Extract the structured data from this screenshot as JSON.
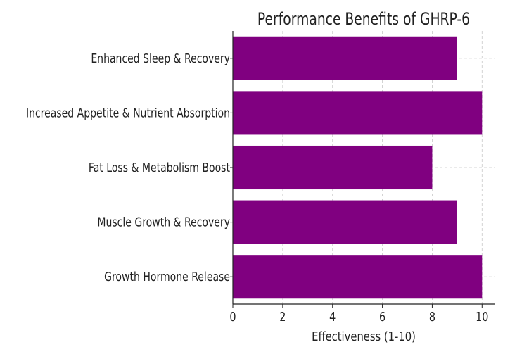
{
  "chart_data": {
    "type": "bar",
    "orientation": "horizontal",
    "title": "Performance Benefits of GHRP-6",
    "xlabel": "Effectiveness (1-10)",
    "ylabel": "",
    "categories": [
      "Enhanced Sleep & Recovery",
      "Increased Appetite & Nutrient Absorption",
      "Fat Loss & Metabolism Boost",
      "Muscle Growth & Recovery",
      "Growth Hormone Release"
    ],
    "values": [
      9,
      10,
      8,
      9,
      10
    ],
    "xlim": [
      0,
      10.5
    ],
    "xticks": [
      "0",
      "2",
      "4",
      "6",
      "8",
      "10"
    ],
    "grid": true,
    "bar_color": "#800080",
    "legend": "none"
  }
}
